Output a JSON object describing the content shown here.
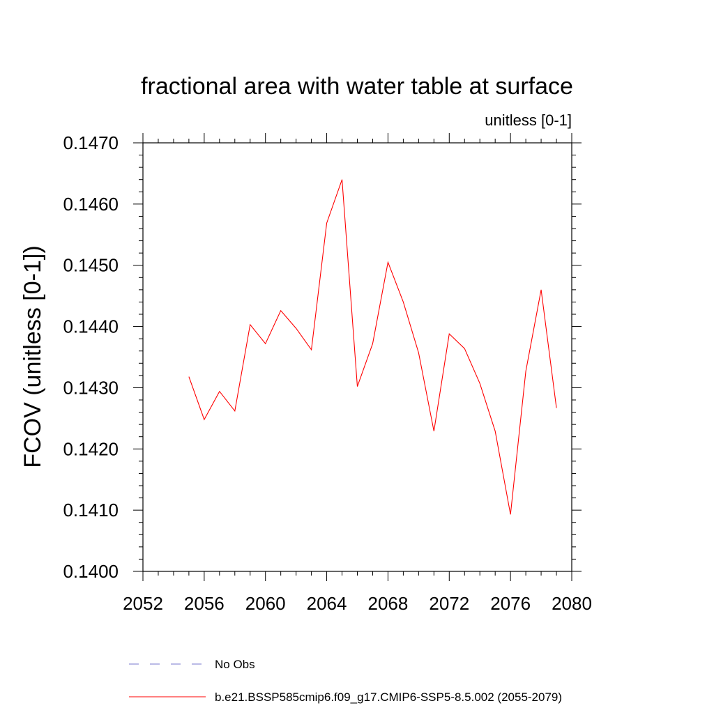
{
  "chart_data": {
    "type": "line",
    "title": "fractional area with water table at surface",
    "subtitle": "unitless [0-1]",
    "xlabel": "",
    "ylabel": "FCOV  (unitless [0-1])",
    "xlim": [
      2052,
      2080
    ],
    "ylim": [
      0.14,
      0.147
    ],
    "x_ticks": [
      "2052",
      "2056",
      "2060",
      "2064",
      "2068",
      "2072",
      "2076",
      "2080"
    ],
    "y_ticks": [
      "0.1400",
      "0.1410",
      "0.1420",
      "0.1430",
      "0.1440",
      "0.1450",
      "0.1460",
      "0.1470"
    ],
    "series": [
      {
        "name": "b.e21.BSSP585cmip6.f09_g17.CMIP6-SSP5-8.5.002 (2055-2079)",
        "color": "#ff0000",
        "x": [
          2055,
          2056,
          2057,
          2058,
          2059,
          2060,
          2061,
          2062,
          2063,
          2064,
          2065,
          2066,
          2067,
          2068,
          2069,
          2070,
          2071,
          2072,
          2073,
          2074,
          2075,
          2076,
          2077,
          2078,
          2079
        ],
        "values": [
          0.14318,
          0.14248,
          0.14294,
          0.14262,
          0.14403,
          0.14372,
          0.14426,
          0.14397,
          0.14362,
          0.14569,
          0.1464,
          0.14302,
          0.14372,
          0.14505,
          0.1444,
          0.14357,
          0.14229,
          0.14388,
          0.14364,
          0.14307,
          0.14229,
          0.14093,
          0.14327,
          0.1446,
          0.14267
        ]
      }
    ],
    "legend": {
      "placement": "bottom",
      "entries": [
        {
          "label": "No Obs",
          "style": "dashed",
          "color": "#7777cc"
        },
        {
          "label": "b.e21.BSSP585cmip6.f09_g17.CMIP6-SSP5-8.5.002 (2055-2079)",
          "style": "solid",
          "color": "#ff0000"
        }
      ]
    },
    "grid": false
  }
}
